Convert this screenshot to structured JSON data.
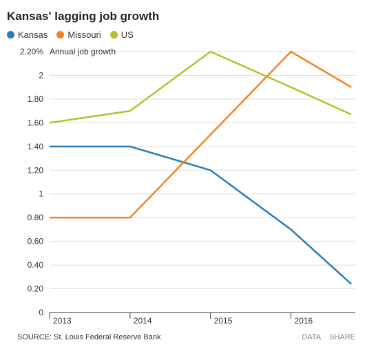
{
  "chart_data": {
    "type": "line",
    "title": "Kansas' lagging job growth",
    "ylabel": "Annual job growth",
    "x": [
      2013,
      2014,
      2015,
      2016,
      2016.75
    ],
    "xticks": [
      "2013",
      "2014",
      "2015",
      "2016"
    ],
    "yticks": [
      "0",
      "0.20",
      "0.40",
      "0.60",
      "0.80",
      "1",
      "1.20",
      "1.40",
      "1.60",
      "1.80",
      "2",
      "2.20%"
    ],
    "ylim": [
      0,
      2.2
    ],
    "grid": true,
    "legend_position": "top-left",
    "series": [
      {
        "name": "Kansas",
        "color": "#2b7bba",
        "values": [
          1.4,
          1.4,
          1.2,
          0.7,
          0.24
        ]
      },
      {
        "name": "Missouri",
        "color": "#f28522",
        "values": [
          0.8,
          0.8,
          1.5,
          2.2,
          1.9
        ]
      },
      {
        "name": "US",
        "color": "#b8bf2e",
        "values": [
          1.6,
          1.7,
          2.2,
          1.9,
          1.67
        ]
      }
    ]
  },
  "footer": {
    "source": "SOURCE: St. Louis Federal Reserve Bank",
    "data_label": "DATA",
    "share_label": "SHARE"
  }
}
